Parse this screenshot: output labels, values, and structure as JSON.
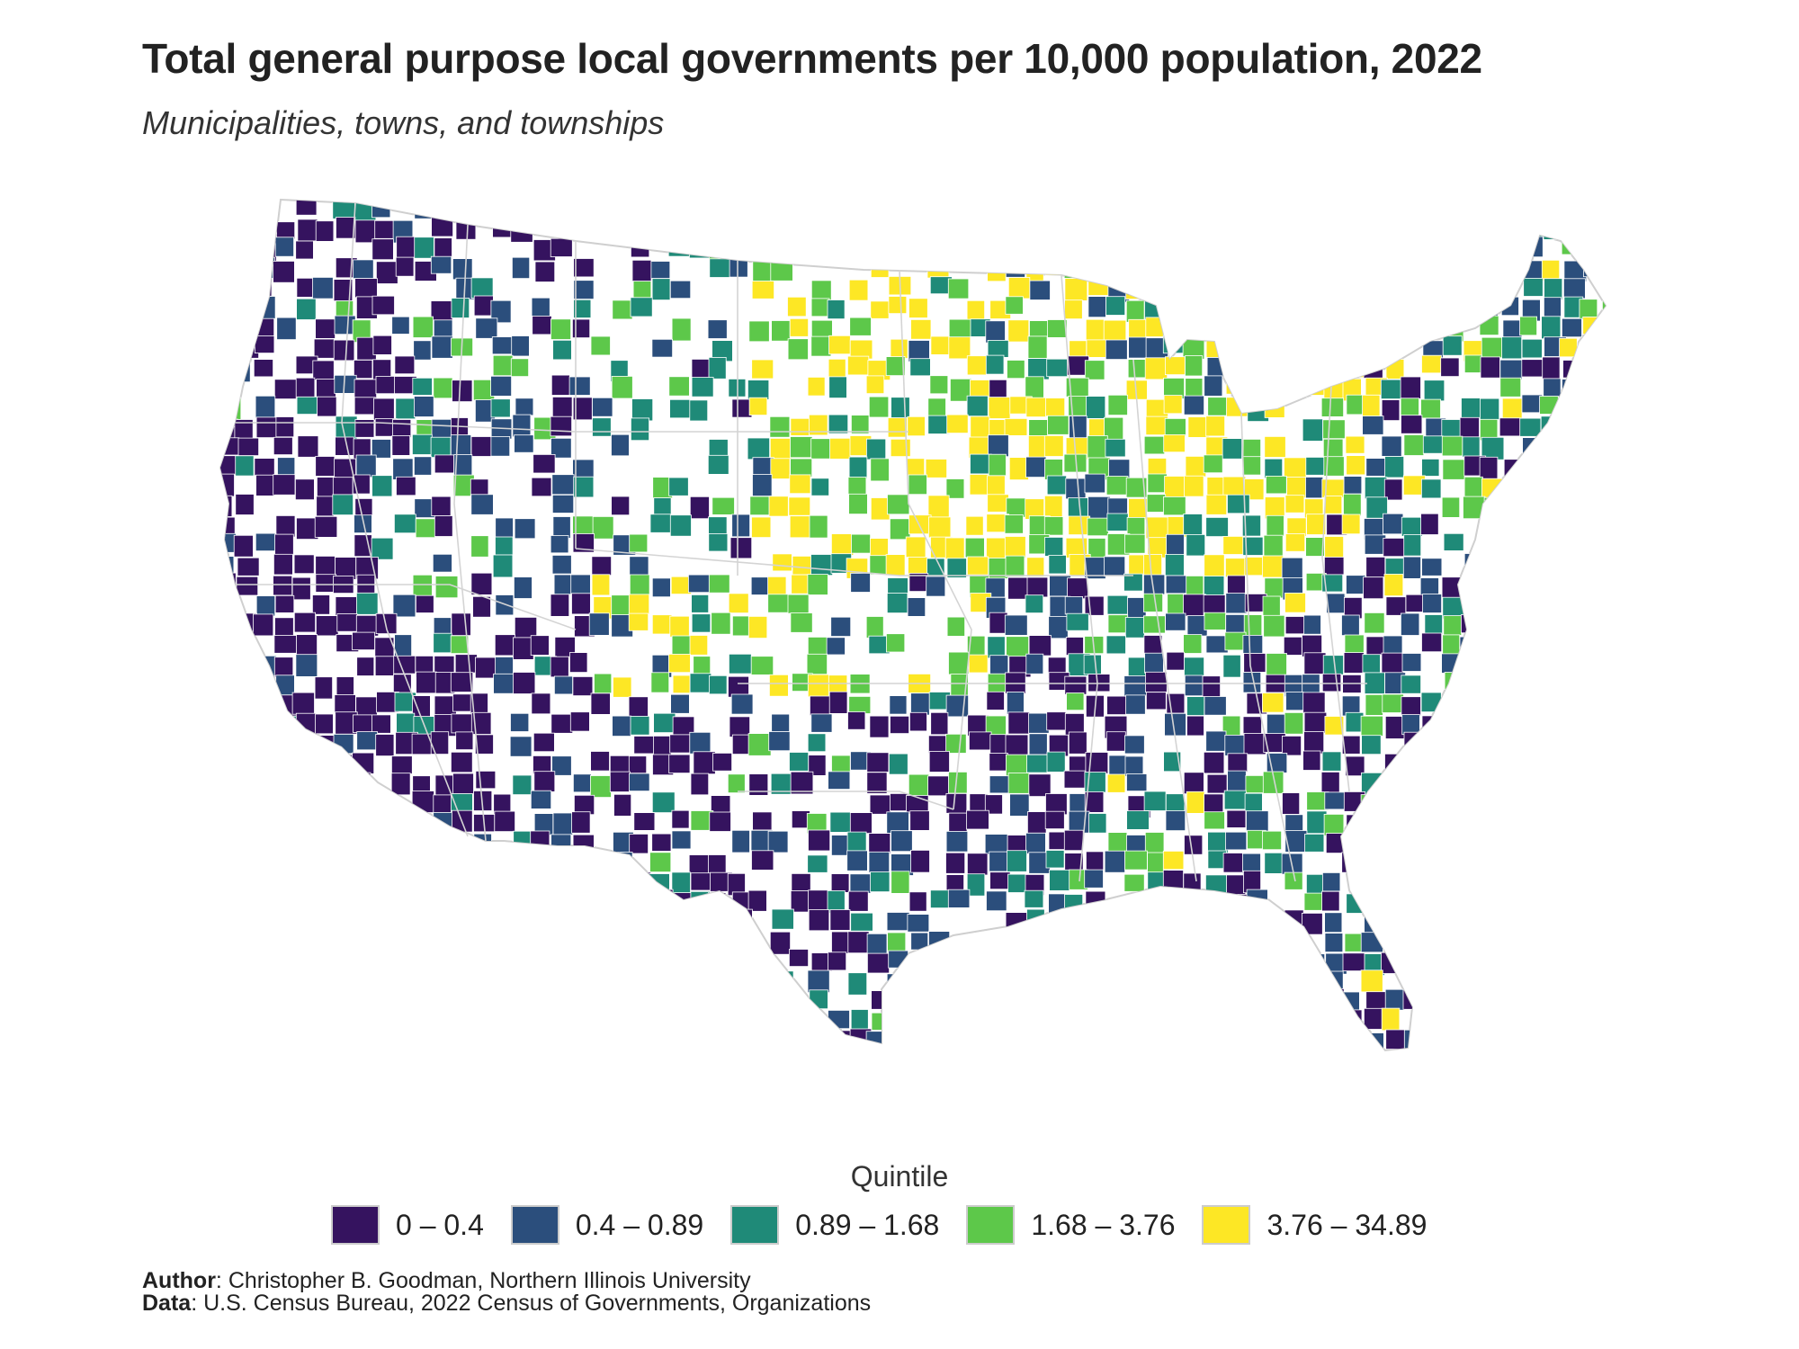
{
  "title": "Total general purpose local governments per 10,000 population, 2022",
  "subtitle": "Municipalities, towns, and townships",
  "legend": {
    "title": "Quintile",
    "items": [
      {
        "label": "0 – 0.4",
        "color": "#35135f"
      },
      {
        "label": "0.4 – 0.89",
        "color": "#2b4e7c"
      },
      {
        "label": "0.89 – 1.68",
        "color": "#1f8a78"
      },
      {
        "label": "1.68 – 3.76",
        "color": "#5dc84a"
      },
      {
        "label": "3.76 – 34.89",
        "color": "#fde725"
      }
    ]
  },
  "credits": {
    "author_label": "Author",
    "author_text": ": Christopher B. Goodman, Northern Illinois University",
    "data_label": "Data",
    "data_text": ": U.S. Census Bureau, 2022 Census of Governments, Organizations"
  },
  "map": {
    "no_data_color": "#ffffff",
    "border_color": "#cfcfcf"
  }
}
